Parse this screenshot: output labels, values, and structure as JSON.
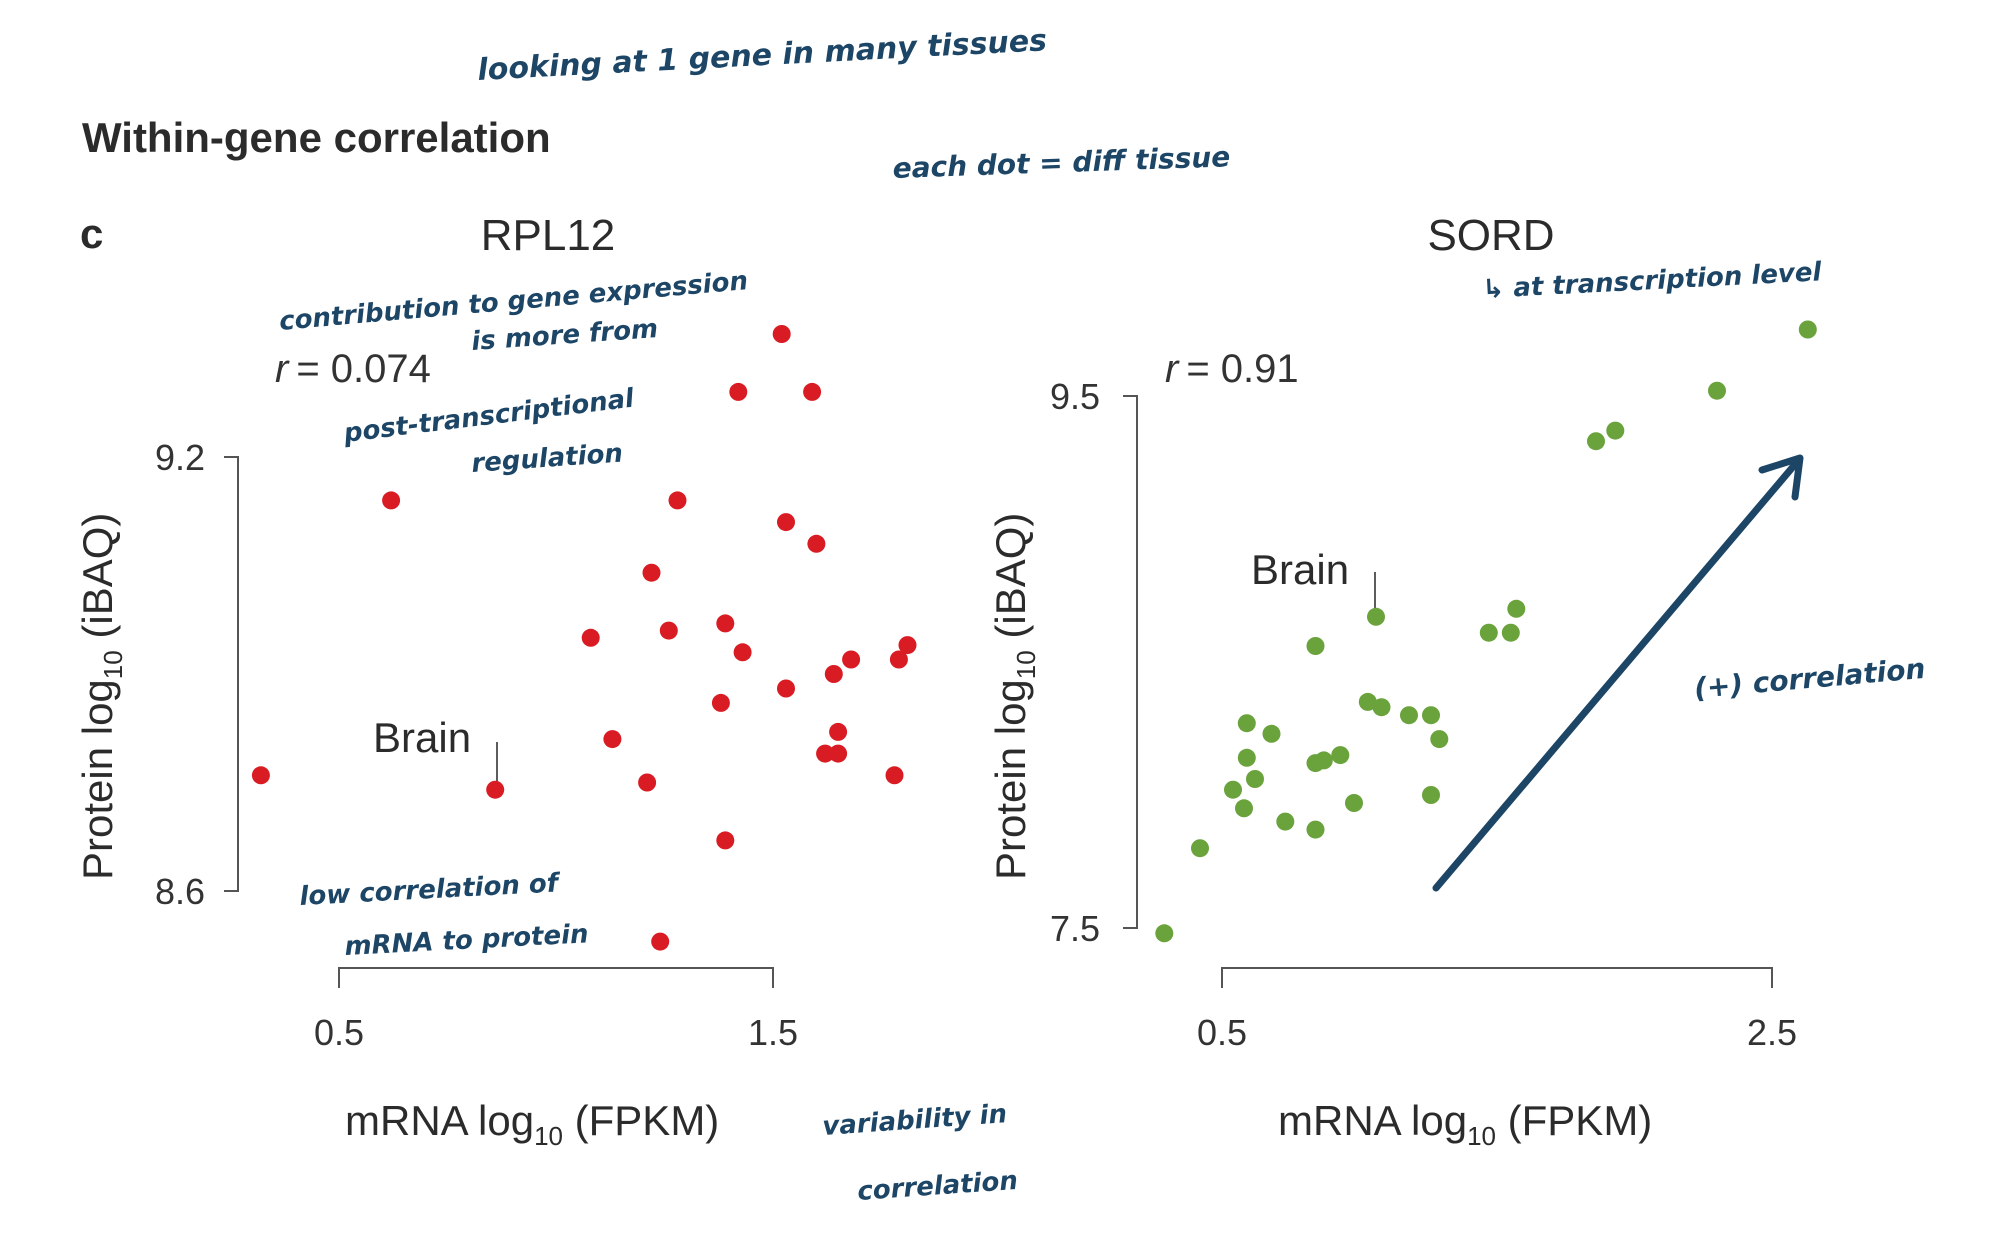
{
  "figure": {
    "section_title": "Within-gene correlation",
    "panel_label": "c"
  },
  "colors": {
    "rpl12_points": "#d91c23",
    "sord_points": "#6aa23c",
    "annotation_ink": "#1c4566",
    "axis": "#555555",
    "text": "#2b2b2b"
  },
  "panels": [
    {
      "gene": "RPL12",
      "r_label": "r",
      "r_value": "= 0.074",
      "y_label_main": "Protein log",
      "y_label_sub": "10",
      "y_label_tail": " (iBAQ)",
      "x_label_main": "mRNA log",
      "x_label_sub": "10",
      "x_label_tail": " (FPKM)",
      "y_ticks": [
        "9.2",
        "8.6"
      ],
      "x_ticks": [
        "0.5",
        "1.5"
      ],
      "callout": "Brain"
    },
    {
      "gene": "SORD",
      "r_label": "r",
      "r_value": "= 0.91",
      "y_label_main": "Protein log",
      "y_label_sub": "10",
      "y_label_tail": " (iBAQ)",
      "x_label_main": "mRNA log",
      "x_label_sub": "10",
      "x_label_tail": " (FPKM)",
      "y_ticks": [
        "9.5",
        "7.5"
      ],
      "x_ticks": [
        "0.5",
        "2.5"
      ],
      "callout": "Brain"
    }
  ],
  "annotations": {
    "top": "looking at 1 gene in many tissues",
    "dots": "each dot = diff tissue",
    "rpl12_top_1": "contribution to gene expression",
    "rpl12_top_2": "is more from",
    "rpl12_top_3": "post-transcriptional",
    "rpl12_top_4": "regulation",
    "rpl12_bottom_1": "low correlation of",
    "rpl12_bottom_2": "mRNA to protein",
    "middle_bottom_1": "variability in",
    "middle_bottom_2": "correlation",
    "sord_top": "↳ at transcription level",
    "sord_arrow_label": "(+) correlation"
  },
  "chart_data": [
    {
      "type": "scatter",
      "title": "RPL12",
      "xlabel": "mRNA log10 (FPKM)",
      "ylabel": "Protein log10 (iBAQ)",
      "xticks": [
        0.5,
        1.5
      ],
      "yticks": [
        8.6,
        9.2
      ],
      "xlim": [
        0.3,
        1.85
      ],
      "ylim": [
        8.5,
        9.4
      ],
      "grid": false,
      "annotation": "r = 0.074",
      "highlight": {
        "label": "Brain",
        "x": 0.86,
        "y": 8.74
      },
      "points": [
        [
          1.52,
          9.37
        ],
        [
          1.42,
          9.29
        ],
        [
          1.59,
          9.29
        ],
        [
          0.62,
          9.14
        ],
        [
          1.28,
          9.14
        ],
        [
          1.53,
          9.11
        ],
        [
          1.6,
          9.08
        ],
        [
          1.22,
          9.04
        ],
        [
          1.08,
          8.95
        ],
        [
          1.26,
          8.96
        ],
        [
          1.39,
          8.97
        ],
        [
          1.43,
          8.93
        ],
        [
          1.81,
          8.94
        ],
        [
          1.68,
          8.92
        ],
        [
          1.79,
          8.92
        ],
        [
          1.64,
          8.9
        ],
        [
          1.53,
          8.88
        ],
        [
          1.38,
          8.86
        ],
        [
          1.65,
          8.82
        ],
        [
          1.13,
          8.81
        ],
        [
          1.62,
          8.79
        ],
        [
          1.65,
          8.79
        ],
        [
          0.32,
          8.76
        ],
        [
          0.86,
          8.74
        ],
        [
          1.21,
          8.75
        ],
        [
          1.78,
          8.76
        ],
        [
          1.39,
          8.67
        ],
        [
          1.24,
          8.53
        ]
      ]
    },
    {
      "type": "scatter",
      "title": "SORD",
      "xlabel": "mRNA log10 (FPKM)",
      "ylabel": "Protein log10 (iBAQ)",
      "xticks": [
        0.5,
        2.5
      ],
      "yticks": [
        7.5,
        9.5
      ],
      "xlim": [
        0.25,
        2.7
      ],
      "ylim": [
        7.4,
        9.8
      ],
      "grid": false,
      "annotation": "r = 0.91",
      "highlight": {
        "label": "Brain",
        "x": 1.06,
        "y": 8.67
      },
      "points": [
        [
          2.63,
          9.75
        ],
        [
          2.3,
          9.52
        ],
        [
          1.86,
          9.33
        ],
        [
          1.93,
          9.37
        ],
        [
          1.57,
          8.7
        ],
        [
          1.47,
          8.61
        ],
        [
          1.55,
          8.61
        ],
        [
          1.06,
          8.67
        ],
        [
          0.84,
          8.56
        ],
        [
          1.03,
          8.35
        ],
        [
          1.08,
          8.33
        ],
        [
          1.18,
          8.3
        ],
        [
          1.26,
          8.3
        ],
        [
          1.29,
          8.21
        ],
        [
          0.59,
          8.27
        ],
        [
          0.68,
          8.23
        ],
        [
          0.59,
          8.14
        ],
        [
          0.62,
          8.06
        ],
        [
          0.54,
          8.02
        ],
        [
          0.58,
          7.95
        ],
        [
          0.84,
          8.12
        ],
        [
          0.87,
          8.13
        ],
        [
          0.93,
          8.15
        ],
        [
          0.98,
          7.97
        ],
        [
          1.26,
          8.0
        ],
        [
          0.73,
          7.9
        ],
        [
          0.84,
          7.87
        ],
        [
          0.42,
          7.8
        ],
        [
          0.29,
          7.48
        ]
      ]
    }
  ]
}
